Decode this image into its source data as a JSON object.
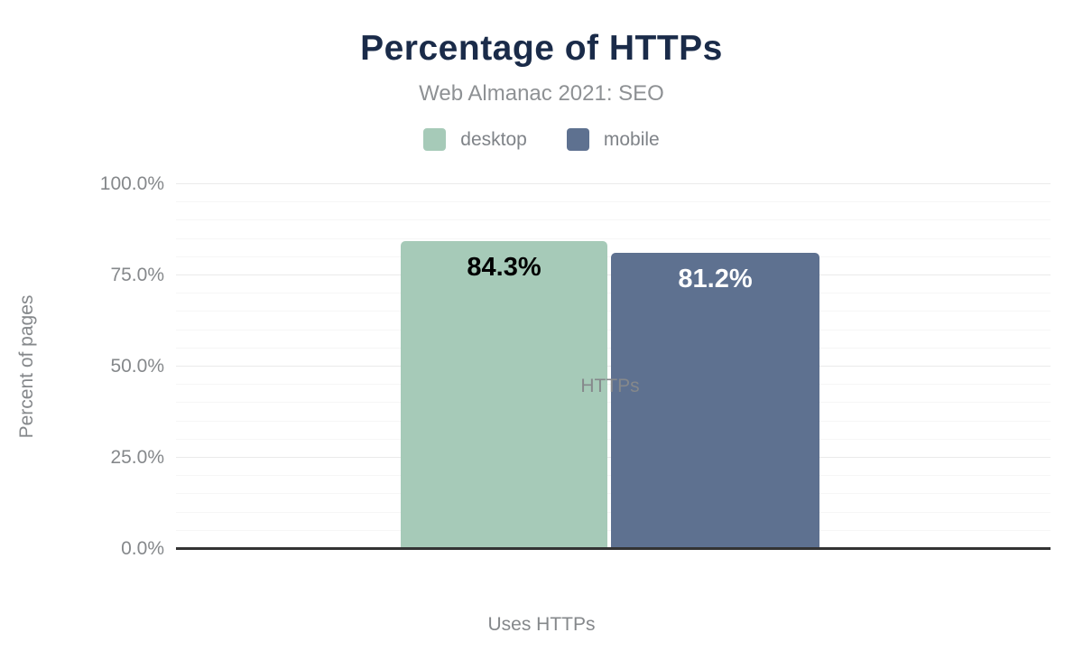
{
  "header": {
    "title": "Percentage of HTTPs",
    "subtitle": "Web Almanac 2021: SEO"
  },
  "legend": {
    "items": [
      {
        "label": "desktop",
        "color": "#a6cab8"
      },
      {
        "label": "mobile",
        "color": "#5e7190"
      }
    ]
  },
  "colors": {
    "title": "#1a2b49",
    "subtitle": "#8e9194",
    "axis_text": "#85888b",
    "axis_line": "#333333",
    "gridline_major": "#eaeaea",
    "gridline_minor": "#f6f6f6",
    "desktop_bar": "#a6cab8",
    "mobile_bar": "#5e7190",
    "desktop_value_text": "#000000",
    "mobile_value_text": "#ffffff"
  },
  "chart_data": {
    "type": "bar",
    "title": "Percentage of HTTPs",
    "subtitle": "Web Almanac 2021: SEO",
    "categories": [
      "HTTPs"
    ],
    "series": [
      {
        "name": "desktop",
        "values": [
          84.3
        ],
        "color": "#a6cab8",
        "data_label": "84.3%",
        "label_color": "#000000"
      },
      {
        "name": "mobile",
        "values": [
          81.2
        ],
        "color": "#5e7190",
        "data_label": "81.2%",
        "label_color": "#ffffff"
      }
    ],
    "xlabel": "Uses HTTPs",
    "ylabel": "Percent of pages",
    "ylim": [
      0,
      100
    ],
    "ytick_step_major": 25,
    "ytick_step_minor": 5,
    "ytick_labels": [
      "0.0%",
      "25.0%",
      "50.0%",
      "75.0%",
      "100.0%"
    ],
    "grid": "horizontal",
    "legend_position": "top"
  }
}
